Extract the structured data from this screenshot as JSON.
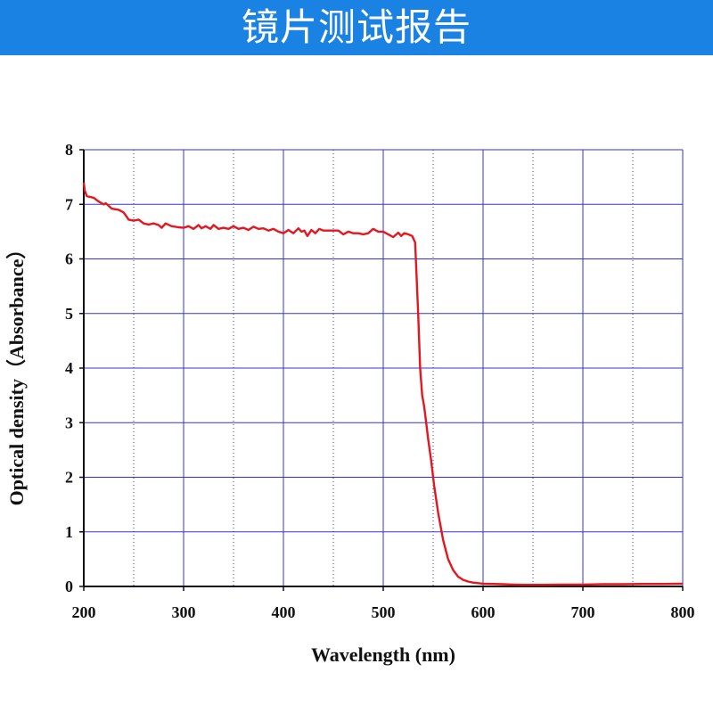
{
  "header": {
    "title": "镜片测试报告"
  },
  "colors": {
    "banner": "#1a82e2",
    "grid": "#3333dd",
    "curve": "#e5161d"
  },
  "chart_data": {
    "type": "line",
    "title": "",
    "xlabel": "Wavelength (nm)",
    "ylabel": "Optical density（Absorbance）",
    "xlim": [
      200,
      800
    ],
    "ylim": [
      0,
      8
    ],
    "xticks": [
      200,
      300,
      400,
      500,
      600,
      700,
      800
    ],
    "yticks": [
      0,
      1,
      2,
      3,
      4,
      5,
      6,
      7,
      8
    ],
    "grid": true,
    "series": [
      {
        "x": [
          200,
          201,
          203,
          210,
          215,
          220,
          222,
          228,
          235,
          240,
          245,
          250,
          255,
          260,
          265,
          270,
          275,
          278,
          282,
          288,
          295,
          300,
          305,
          310,
          315,
          318,
          322,
          327,
          330,
          335,
          340,
          345,
          350,
          355,
          360,
          365,
          370,
          375,
          380,
          385,
          390,
          395,
          400,
          405,
          410,
          415,
          418,
          421,
          424,
          428,
          432,
          436,
          440,
          445,
          450,
          455,
          460,
          465,
          470,
          475,
          480,
          485,
          490,
          495,
          500,
          505,
          510,
          515,
          518,
          521,
          525,
          529,
          532,
          535,
          537,
          539,
          541,
          543,
          545,
          548,
          551,
          555,
          560,
          565,
          570,
          575,
          580,
          585,
          590,
          595,
          600,
          610,
          620,
          630,
          640,
          650,
          660,
          680,
          700,
          720,
          740,
          760,
          780,
          800
        ],
        "values": [
          7.4,
          7.25,
          7.15,
          7.12,
          7.05,
          7.0,
          7.02,
          6.92,
          6.9,
          6.85,
          6.72,
          6.7,
          6.72,
          6.65,
          6.63,
          6.65,
          6.62,
          6.57,
          6.65,
          6.6,
          6.58,
          6.57,
          6.6,
          6.55,
          6.62,
          6.56,
          6.6,
          6.55,
          6.62,
          6.55,
          6.57,
          6.55,
          6.6,
          6.55,
          6.57,
          6.53,
          6.59,
          6.55,
          6.56,
          6.52,
          6.55,
          6.5,
          6.47,
          6.53,
          6.47,
          6.56,
          6.5,
          6.52,
          6.42,
          6.53,
          6.47,
          6.55,
          6.52,
          6.52,
          6.52,
          6.52,
          6.45,
          6.5,
          6.47,
          6.47,
          6.45,
          6.47,
          6.55,
          6.5,
          6.5,
          6.45,
          6.4,
          6.48,
          6.42,
          6.47,
          6.45,
          6.42,
          6.3,
          5.0,
          4.0,
          3.5,
          3.3,
          3.0,
          2.7,
          2.3,
          1.85,
          1.35,
          0.85,
          0.5,
          0.3,
          0.18,
          0.12,
          0.09,
          0.07,
          0.06,
          0.05,
          0.045,
          0.04,
          0.035,
          0.03,
          0.03,
          0.03,
          0.035,
          0.035,
          0.04,
          0.04,
          0.045,
          0.045,
          0.05
        ]
      }
    ]
  }
}
